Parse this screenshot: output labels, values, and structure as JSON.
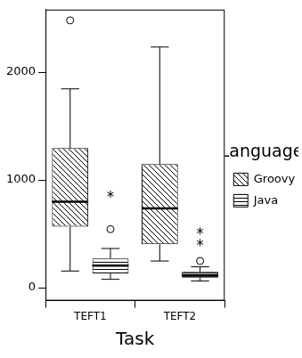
{
  "chart_data": {
    "type": "boxplot",
    "x_label": "Task",
    "legend_title": "Language",
    "legend": "right",
    "grid": false,
    "categories": [
      "TEFT1",
      "TEFT2"
    ],
    "ylim": [
      -120,
      2580
    ],
    "yticks": [
      0,
      1000,
      2000
    ],
    "series": [
      {
        "name": "Groovy",
        "color": "#000000",
        "values": [
          {
            "low": 155,
            "q1": 566,
            "median": 798,
            "q3": 1295,
            "high": 1845,
            "outliers": [
              2480
            ],
            "extremes": []
          },
          {
            "low": 248,
            "q1": 403,
            "median": 736,
            "q3": 1147,
            "high": 2233,
            "outliers": [],
            "extremes": []
          }
        ]
      },
      {
        "name": "Java",
        "color": "#000000",
        "values": [
          {
            "low": 78,
            "q1": 132,
            "median": 205,
            "q3": 271,
            "high": 364,
            "outliers": [
              543
            ],
            "extremes": [
              868
            ]
          },
          {
            "low": 62,
            "q1": 93,
            "median": 116,
            "q3": 147,
            "high": 194,
            "outliers": [
              248
            ],
            "extremes": [
              419,
              527
            ]
          }
        ]
      }
    ]
  }
}
